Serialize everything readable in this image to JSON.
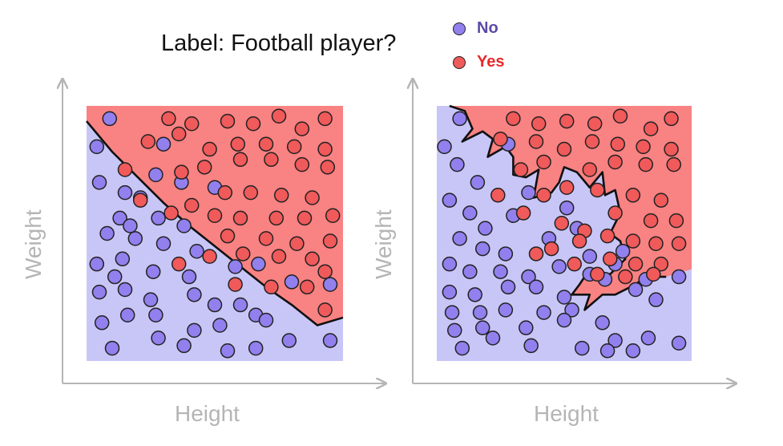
{
  "title": "Label: Football player?",
  "legend": [
    {
      "label": "No",
      "color": "#9280ee",
      "text_color": "#5b4aa8"
    },
    {
      "label": "Yes",
      "color": "#f05a5a",
      "text_color": "#e8282a"
    }
  ],
  "colors": {
    "no_region": "#c8c6f7",
    "yes_region": "#f98282",
    "no_point": "#9280ee",
    "yes_point": "#f05a5a",
    "axis": "#b5b5b5"
  },
  "chart_data": [
    {
      "type": "scatter",
      "xlabel": "Height",
      "ylabel": "Weight",
      "xlim": [
        0,
        100
      ],
      "ylim": [
        0,
        100
      ],
      "boundary": [
        [
          0,
          94
        ],
        [
          10,
          82
        ],
        [
          20,
          72
        ],
        [
          30,
          62
        ],
        [
          40,
          53
        ],
        [
          50,
          45
        ],
        [
          60,
          37
        ],
        [
          70,
          29
        ],
        [
          80,
          22
        ],
        [
          90,
          14
        ],
        [
          100,
          17
        ]
      ],
      "series": [
        {
          "name": "No",
          "points": [
            [
              9,
              95
            ],
            [
              4,
              84
            ],
            [
              30,
              85
            ],
            [
              27,
              73
            ],
            [
              37,
              70
            ],
            [
              50,
              68
            ],
            [
              5,
              70
            ],
            [
              15,
              66
            ],
            [
              21,
              64
            ],
            [
              13,
              56
            ],
            [
              8,
              50
            ],
            [
              17,
              53
            ],
            [
              28,
              56
            ],
            [
              38,
              53
            ],
            [
              19,
              48
            ],
            [
              4,
              38
            ],
            [
              14,
              40
            ],
            [
              30,
              46
            ],
            [
              43,
              43
            ],
            [
              11,
              33
            ],
            [
              26,
              35
            ],
            [
              40,
              33
            ],
            [
              58,
              37
            ],
            [
              67,
              38
            ],
            [
              5,
              27
            ],
            [
              15,
              28
            ],
            [
              25,
              24
            ],
            [
              42,
              26
            ],
            [
              50,
              22
            ],
            [
              60,
              22
            ],
            [
              80,
              31
            ],
            [
              95,
              30
            ],
            [
              6,
              15
            ],
            [
              16,
              18
            ],
            [
              27,
              18
            ],
            [
              42,
              12
            ],
            [
              52,
              14
            ],
            [
              66,
              18
            ],
            [
              79,
              8
            ],
            [
              70,
              16
            ],
            [
              95,
              8
            ],
            [
              10,
              5
            ],
            [
              28,
              9
            ],
            [
              38,
              6
            ],
            [
              55,
              4
            ],
            [
              66,
              5
            ]
          ]
        },
        {
          "name": "Yes",
          "points": [
            [
              32,
              95
            ],
            [
              41,
              93
            ],
            [
              55,
              94
            ],
            [
              65,
              93
            ],
            [
              75,
              96
            ],
            [
              84,
              91
            ],
            [
              93,
              95
            ],
            [
              24,
              86
            ],
            [
              36,
              89
            ],
            [
              48,
              83
            ],
            [
              59,
              85
            ],
            [
              70,
              85
            ],
            [
              81,
              84
            ],
            [
              93,
              83
            ],
            [
              15,
              75
            ],
            [
              37,
              74
            ],
            [
              46,
              76
            ],
            [
              60,
              79
            ],
            [
              72,
              79
            ],
            [
              84,
              77
            ],
            [
              94,
              76
            ],
            [
              21,
              63
            ],
            [
              41,
              61
            ],
            [
              54,
              66
            ],
            [
              64,
              66
            ],
            [
              76,
              65
            ],
            [
              88,
              64
            ],
            [
              33,
              58
            ],
            [
              50,
              57
            ],
            [
              60,
              56
            ],
            [
              74,
              56
            ],
            [
              85,
              56
            ],
            [
              96,
              57
            ],
            [
              55,
              49
            ],
            [
              70,
              48
            ],
            [
              82,
              46
            ],
            [
              95,
              47
            ],
            [
              48,
              41
            ],
            [
              61,
              42
            ],
            [
              75,
              41
            ],
            [
              88,
              40
            ],
            [
              93,
              35
            ],
            [
              36,
              38
            ],
            [
              58,
              30
            ],
            [
              72,
              29
            ],
            [
              86,
              29
            ],
            [
              93,
              20
            ]
          ]
        }
      ]
    },
    {
      "type": "scatter",
      "xlabel": "Height",
      "ylabel": "Weight",
      "xlim": [
        0,
        100
      ],
      "ylim": [
        0,
        100
      ],
      "boundary": [
        [
          5,
          100
        ],
        [
          11,
          98
        ],
        [
          14,
          91
        ],
        [
          10,
          86
        ],
        [
          18,
          90
        ],
        [
          22,
          87
        ],
        [
          20,
          80
        ],
        [
          27,
          84
        ],
        [
          30,
          80
        ],
        [
          30,
          73
        ],
        [
          35,
          72
        ],
        [
          40,
          75
        ],
        [
          38,
          64
        ],
        [
          45,
          66
        ],
        [
          48,
          70
        ],
        [
          50,
          76
        ],
        [
          55,
          74
        ],
        [
          60,
          68
        ],
        [
          65,
          74
        ],
        [
          66,
          65
        ],
        [
          70,
          67
        ],
        [
          72,
          58
        ],
        [
          68,
          50
        ],
        [
          72,
          47
        ],
        [
          74,
          40
        ],
        [
          68,
          34
        ],
        [
          60,
          36
        ],
        [
          56,
          30
        ],
        [
          53,
          26
        ],
        [
          60,
          26
        ],
        [
          58,
          20
        ],
        [
          65,
          26
        ],
        [
          70,
          26
        ],
        [
          74,
          28
        ],
        [
          78,
          30
        ],
        [
          82,
          33
        ],
        [
          90,
          33
        ],
        [
          100,
          36
        ],
        [
          100,
          100
        ]
      ],
      "series": [
        {
          "name": "No",
          "points": [
            [
              9,
              95
            ],
            [
              3,
              84
            ],
            [
              8,
              77
            ],
            [
              16,
              70
            ],
            [
              28,
              85
            ],
            [
              5,
              63
            ],
            [
              13,
              58
            ],
            [
              19,
              52
            ],
            [
              30,
              57
            ],
            [
              36,
              66
            ],
            [
              9,
              48
            ],
            [
              18,
              44
            ],
            [
              27,
              42
            ],
            [
              44,
              48
            ],
            [
              55,
              52
            ],
            [
              51,
              60
            ],
            [
              5,
              38
            ],
            [
              13,
              35
            ],
            [
              25,
              35
            ],
            [
              36,
              33
            ],
            [
              48,
              37
            ],
            [
              60,
              41
            ],
            [
              70,
              38
            ],
            [
              73,
              43
            ],
            [
              5,
              27
            ],
            [
              15,
              26
            ],
            [
              28,
              29
            ],
            [
              39,
              29
            ],
            [
              50,
              25
            ],
            [
              60,
              34
            ],
            [
              66,
              32
            ],
            [
              82,
              32
            ],
            [
              95,
              33
            ],
            [
              6,
              19
            ],
            [
              17,
              19
            ],
            [
              27,
              20
            ],
            [
              42,
              19
            ],
            [
              53,
              20
            ],
            [
              65,
              15
            ],
            [
              78,
              28
            ],
            [
              7,
              12
            ],
            [
              18,
              13
            ],
            [
              35,
              13
            ],
            [
              50,
              16
            ],
            [
              57,
              5
            ],
            [
              70,
              8
            ],
            [
              83,
              9
            ],
            [
              95,
              7
            ],
            [
              10,
              5
            ],
            [
              22,
              9
            ],
            [
              37,
              6
            ],
            [
              67,
              4
            ],
            [
              77,
              4
            ],
            [
              86,
              24
            ]
          ]
        },
        {
          "name": "Yes",
          "points": [
            [
              30,
              95
            ],
            [
              40,
              93
            ],
            [
              51,
              94
            ],
            [
              62,
              93
            ],
            [
              72,
              96
            ],
            [
              84,
              91
            ],
            [
              92,
              95
            ],
            [
              25,
              87
            ],
            [
              39,
              86
            ],
            [
              50,
              83
            ],
            [
              61,
              86
            ],
            [
              71,
              85
            ],
            [
              81,
              84
            ],
            [
              92,
              83
            ],
            [
              33,
              75
            ],
            [
              42,
              78
            ],
            [
              60,
              75
            ],
            [
              70,
              78
            ],
            [
              82,
              77
            ],
            [
              93,
              77
            ],
            [
              24,
              65
            ],
            [
              42,
              65
            ],
            [
              51,
              68
            ],
            [
              63,
              67
            ],
            [
              77,
              65
            ],
            [
              88,
              63
            ],
            [
              34,
              58
            ],
            [
              49,
              54
            ],
            [
              58,
              51
            ],
            [
              70,
              58
            ],
            [
              84,
              55
            ],
            [
              94,
              55
            ],
            [
              45,
              44
            ],
            [
              56,
              47
            ],
            [
              67,
              49
            ],
            [
              77,
              47
            ],
            [
              86,
              46
            ],
            [
              95,
              46
            ],
            [
              39,
              42
            ],
            [
              68,
              40
            ],
            [
              78,
              38
            ],
            [
              88,
              38
            ],
            [
              54,
              38
            ],
            [
              63,
              34
            ],
            [
              74,
              33
            ],
            [
              85,
              34
            ]
          ]
        }
      ]
    }
  ]
}
